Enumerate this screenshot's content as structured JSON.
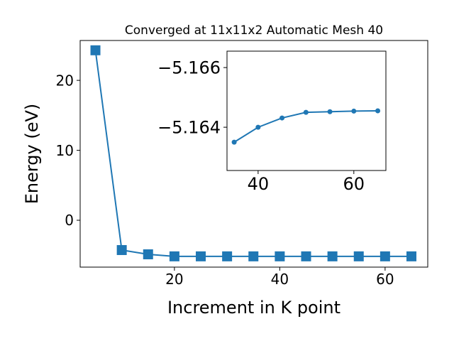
{
  "chart_data": [
    {
      "type": "line",
      "title": "Converged at 11x11x2 Automatic Mesh 40",
      "x_label": "Increment in K point",
      "y_label": "Energy (eV)",
      "series": [
        {
          "color": "#1f77b4",
          "marker": "square",
          "x": [
            5,
            10,
            15,
            20,
            25,
            30,
            35,
            40,
            45,
            50,
            55,
            60,
            65
          ],
          "values": [
            24.3,
            -4.26,
            -4.87,
            -5.16,
            -5.16,
            -5.16,
            -5.16,
            -5.16,
            -5.16,
            -5.16,
            -5.16,
            -5.16,
            -5.16
          ]
        }
      ],
      "xlim": [
        2.1,
        68.1
      ],
      "xticks": [
        20,
        40,
        60
      ],
      "ylim": [
        -6.7,
        25.7
      ],
      "yticks": [
        0,
        10,
        20
      ]
    },
    {
      "type": "line",
      "series": [
        {
          "color": "#1f77b4",
          "marker": "circle",
          "x": [
            35,
            40,
            45,
            50,
            55,
            60,
            65
          ],
          "values": [
            -5.1635,
            -5.164,
            -5.16431,
            -5.1645,
            -5.16452,
            -5.16454,
            -5.16455
          ]
        }
      ],
      "xlim": [
        33.5,
        66.7
      ],
      "xticks": [
        40,
        60
      ],
      "ylim": [
        -5.16255,
        -5.16655
      ],
      "yticks": [
        {
          "value": -5.164,
          "label": "−5.164"
        },
        {
          "value": -5.166,
          "label": "−5.166"
        }
      ]
    }
  ]
}
